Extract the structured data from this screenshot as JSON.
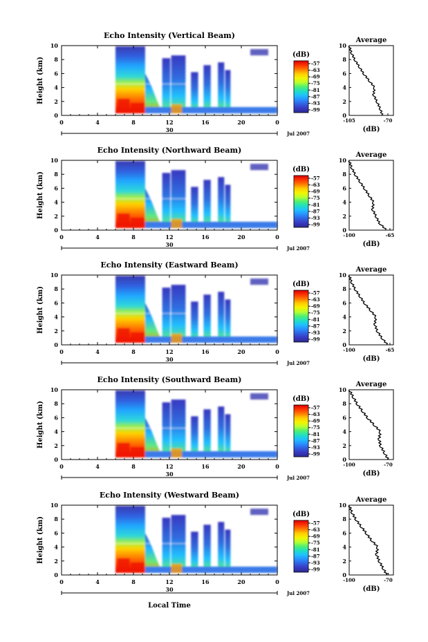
{
  "figure": {
    "xlabel": "Local Time",
    "date_label": "Jul 2007",
    "day_label": "30",
    "ylabel": "Height (km)",
    "avg_title": "Average",
    "avg_xlabel": "(dB)",
    "cbar_label": "(dB)",
    "cbar_ticks": [
      "-57",
      "-63",
      "-69",
      "-75",
      "-81",
      "-87",
      "-93",
      "-99"
    ],
    "cbar_colors": [
      "#d90000",
      "#ff3300",
      "#ff7a00",
      "#ffcc00",
      "#f4f400",
      "#b8ff30",
      "#50f070",
      "#20e0c0",
      "#20c0ff",
      "#2890ff",
      "#3060e0",
      "#3838c0",
      "#2a2a90"
    ],
    "x_ticks": [
      "0",
      "4",
      "8",
      "12",
      "16",
      "20",
      "0"
    ],
    "y_ticks": [
      "0",
      "2",
      "4",
      "6",
      "8",
      "10"
    ]
  },
  "chart_data": [
    {
      "type": "heatmap",
      "title": "Echo Intensity (Vertical Beam)",
      "x_range": [
        0,
        24
      ],
      "y_range": [
        0,
        10
      ],
      "colorbar_range": [
        -99,
        -57
      ],
      "avg_xticks": [
        "-105",
        "-70"
      ],
      "avg_range": [
        -105,
        -65
      ],
      "avg_profile": [
        [
          0,
          -75
        ],
        [
          1,
          -77
        ],
        [
          2,
          -80
        ],
        [
          3,
          -83
        ],
        [
          4,
          -82
        ],
        [
          5,
          -87
        ],
        [
          6,
          -92
        ],
        [
          7,
          -96
        ],
        [
          8,
          -100
        ],
        [
          9,
          -103
        ],
        [
          10,
          -105
        ]
      ]
    },
    {
      "type": "heatmap",
      "title": "Echo Intensity (Northward Beam)",
      "x_range": [
        0,
        24
      ],
      "y_range": [
        0,
        10
      ],
      "colorbar_range": [
        -99,
        -57
      ],
      "avg_xticks": [
        "-100",
        "-65"
      ],
      "avg_range": [
        -100,
        -62
      ],
      "avg_profile": [
        [
          0,
          -68
        ],
        [
          1,
          -74
        ],
        [
          2,
          -77
        ],
        [
          3,
          -80
        ],
        [
          4,
          -79
        ],
        [
          5,
          -83
        ],
        [
          6,
          -87
        ],
        [
          7,
          -91
        ],
        [
          8,
          -95
        ],
        [
          9,
          -98
        ],
        [
          10,
          -100
        ]
      ]
    },
    {
      "type": "heatmap",
      "title": "Echo Intensity (Eastward Beam)",
      "x_range": [
        0,
        24
      ],
      "y_range": [
        0,
        10
      ],
      "colorbar_range": [
        -99,
        -57
      ],
      "avg_xticks": [
        "-100",
        "-65"
      ],
      "avg_range": [
        -100,
        -62
      ],
      "avg_profile": [
        [
          0,
          -67
        ],
        [
          1,
          -72
        ],
        [
          2,
          -76
        ],
        [
          3,
          -78
        ],
        [
          4,
          -77
        ],
        [
          5,
          -82
        ],
        [
          6,
          -87
        ],
        [
          7,
          -91
        ],
        [
          8,
          -95
        ],
        [
          9,
          -98
        ],
        [
          10,
          -100
        ]
      ]
    },
    {
      "type": "heatmap",
      "title": "Echo Intensity (Southward Beam)",
      "x_range": [
        0,
        24
      ],
      "y_range": [
        0,
        10
      ],
      "colorbar_range": [
        -99,
        -57
      ],
      "avg_xticks": [
        "-100",
        "-70"
      ],
      "avg_range": [
        -100,
        -66
      ],
      "avg_profile": [
        [
          0,
          -70
        ],
        [
          1,
          -73
        ],
        [
          2,
          -76
        ],
        [
          3,
          -77
        ],
        [
          4,
          -76
        ],
        [
          5,
          -81
        ],
        [
          6,
          -86
        ],
        [
          7,
          -90
        ],
        [
          8,
          -94
        ],
        [
          9,
          -97
        ],
        [
          10,
          -100
        ]
      ]
    },
    {
      "type": "heatmap",
      "title": "Echo Intensity (Westward Beam)",
      "x_range": [
        0,
        24
      ],
      "y_range": [
        0,
        10
      ],
      "colorbar_range": [
        -99,
        -57
      ],
      "avg_xticks": [
        "-100",
        "-70"
      ],
      "avg_range": [
        -100,
        -66
      ],
      "avg_profile": [
        [
          0,
          -71
        ],
        [
          1,
          -74
        ],
        [
          2,
          -77
        ],
        [
          3,
          -79
        ],
        [
          4,
          -78
        ],
        [
          5,
          -83
        ],
        [
          6,
          -87
        ],
        [
          7,
          -91
        ],
        [
          8,
          -95
        ],
        [
          9,
          -98
        ],
        [
          10,
          -100
        ]
      ]
    }
  ]
}
